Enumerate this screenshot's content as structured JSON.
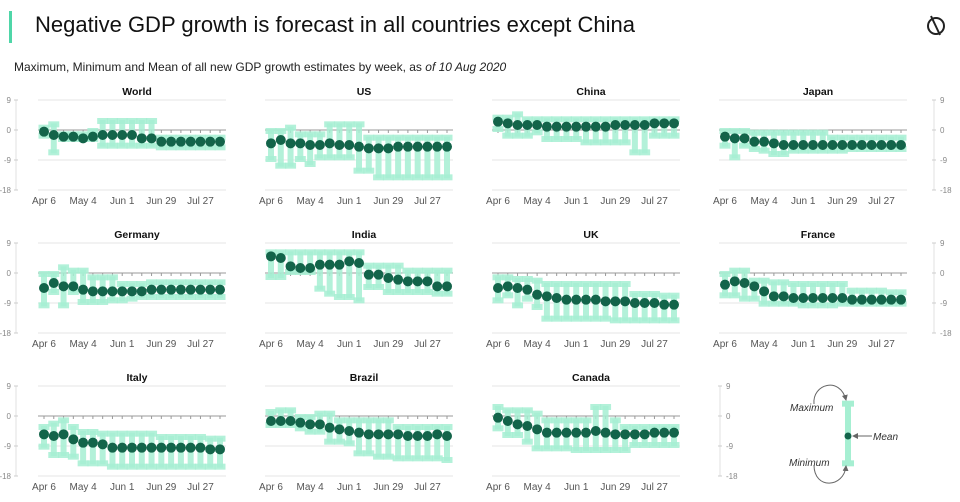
{
  "header": {
    "title": "Negative GDP growth is forecast in all countries except China",
    "subtitle_main": "Maximum, Minimum and Mean of all new GDP growth estimates by week, as ",
    "subtitle_date": "of 10 Aug 2020",
    "logo_icon": "circle-slash-logo-icon"
  },
  "colors": {
    "accent": "#4fd6a8",
    "range": "#a6efd2",
    "mean": "#13644a",
    "zero_line": "#999999",
    "grid": "#e6e6e6"
  },
  "chart_data": {
    "type": "range-dot",
    "weeks": [
      "Apr 6",
      "Apr 13",
      "Apr 20",
      "Apr 27",
      "May 4",
      "May 11",
      "May 18",
      "May 25",
      "Jun 1",
      "Jun 8",
      "Jun 15",
      "Jun 22",
      "Jun 29",
      "Jul 6",
      "Jul 13",
      "Jul 20",
      "Jul 27",
      "Aug 3",
      "Aug 10"
    ],
    "x_tick_labels": [
      "Apr 6",
      "May 4",
      "Jun 1",
      "Jun 29",
      "Jul 27"
    ],
    "y_ticks": [
      "9",
      "0",
      "-9",
      "-18"
    ],
    "ylim": [
      -18,
      9
    ],
    "grid": true,
    "panels": [
      {
        "name": "World",
        "mean": [
          -0.5,
          -1.5,
          -2,
          -2,
          -2.5,
          -2,
          -1.5,
          -1.5,
          -1.5,
          -1.5,
          -2.5,
          -2.5,
          -3.5,
          -3.5,
          -3.5,
          -3.5,
          -3.5,
          -3.5,
          -3.5
        ],
        "max": [
          1,
          2,
          -1,
          -1,
          -1,
          0,
          3,
          3,
          3,
          3,
          3,
          3,
          -2,
          -2,
          -2,
          -2,
          -2,
          -2,
          -2
        ],
        "min": [
          -2,
          -7,
          -3,
          -3,
          -3,
          -3,
          -5,
          -5,
          -5,
          -5,
          -5,
          -5,
          -5.5,
          -5.5,
          -5.5,
          -5.5,
          -5.5,
          -5.5,
          -5.5
        ]
      },
      {
        "name": "US",
        "mean": [
          -4,
          -3,
          -4,
          -4,
          -4.5,
          -4.5,
          -4,
          -4.5,
          -4.5,
          -5,
          -5.5,
          -5.5,
          -5.5,
          -5,
          -5,
          -5,
          -5,
          -5,
          -5
        ],
        "max": [
          0,
          0,
          1,
          -1,
          -1,
          -1,
          2,
          2,
          2,
          2,
          -2,
          -2,
          -2,
          -2,
          -2,
          -2,
          -2,
          -2,
          -2
        ],
        "min": [
          -9,
          -11,
          -11,
          -9,
          -10.5,
          -8.5,
          -8.5,
          -8.5,
          -8.5,
          -12.5,
          -12.5,
          -14.5,
          -14.5,
          -14.5,
          -14.5,
          -14.5,
          -14.5,
          -14.5,
          -14.5
        ]
      },
      {
        "name": "China",
        "mean": [
          2.5,
          2,
          1.5,
          1.5,
          1.5,
          1,
          1,
          1,
          1,
          1,
          1,
          1,
          1.5,
          1.5,
          1.5,
          1.5,
          2,
          2,
          2
        ],
        "max": [
          4,
          4,
          5,
          3.5,
          3.5,
          3.5,
          3.5,
          3.5,
          3.5,
          3.5,
          3.5,
          3.5,
          3.5,
          3.5,
          3.5,
          3.5,
          3.5,
          3.5,
          3.5
        ],
        "min": [
          0,
          -2,
          -2,
          -2,
          -1,
          -3,
          -3,
          -3,
          -3,
          -4,
          -4,
          -4,
          -4,
          -4,
          -7,
          -7,
          -2,
          -2,
          -2
        ]
      },
      {
        "name": "Japan",
        "mean": [
          -2,
          -2.5,
          -2.5,
          -3.5,
          -3.5,
          -4,
          -4.5,
          -4.5,
          -4.5,
          -4.5,
          -4.5,
          -4.5,
          -4.5,
          -4.5,
          -4.5,
          -4.5,
          -4.5,
          -4.5,
          -4.5
        ],
        "max": [
          0,
          0,
          0,
          -0.5,
          -0.5,
          -0.5,
          -0.5,
          -0.5,
          -0.5,
          -0.5,
          -0.5,
          -2,
          -2,
          -2,
          -2,
          -2,
          -2,
          -2,
          -2
        ],
        "min": [
          -5,
          -8.5,
          -5,
          -6,
          -6.5,
          -7.5,
          -7.5,
          -6.5,
          -6.5,
          -6.5,
          -6.5,
          -6.5,
          -6.5,
          -6,
          -6,
          -6,
          -6,
          -6,
          -6
        ]
      },
      {
        "name": "Germany",
        "mean": [
          -4.5,
          -3,
          -4,
          -4,
          -5,
          -5.5,
          -5.5,
          -5.5,
          -5.5,
          -5.5,
          -5.5,
          -5,
          -5,
          -5,
          -5,
          -5,
          -5,
          -5,
          -5
        ],
        "max": [
          0,
          0,
          2,
          1,
          1,
          -1,
          -1,
          -1,
          -3,
          -3,
          -3,
          -2.5,
          -2.5,
          -2.5,
          -2.5,
          -2.5,
          -2.5,
          -2.5,
          -2.5
        ],
        "min": [
          -10,
          -6,
          -10,
          -6,
          -9,
          -9,
          -9,
          -8.5,
          -8.5,
          -8,
          -7.5,
          -7.5,
          -7.5,
          -7.5,
          -7.5,
          -7.5,
          -7.5,
          -7.5,
          -7.5
        ]
      },
      {
        "name": "India",
        "mean": [
          5,
          4.5,
          2,
          1.5,
          1.5,
          2.5,
          2.5,
          2.5,
          3.5,
          3,
          -0.5,
          -0.5,
          -1.5,
          -2,
          -2.5,
          -2.5,
          -2.5,
          -4,
          -4
        ],
        "max": [
          6.5,
          6.5,
          6.5,
          6.5,
          6.5,
          6.5,
          6.5,
          6.5,
          6.5,
          6.5,
          2.5,
          2.5,
          2.5,
          2.5,
          1,
          1,
          1,
          1,
          1
        ],
        "min": [
          -1.5,
          -1.5,
          0,
          0,
          0,
          -5,
          -6.5,
          -7.5,
          -7.5,
          -8.5,
          -4.5,
          -4.5,
          -6,
          -6,
          -6,
          -6,
          -6,
          -6.5,
          -6.5
        ]
      },
      {
        "name": "UK",
        "mean": [
          -4.5,
          -4,
          -4.5,
          -5,
          -6.5,
          -7,
          -7.5,
          -8,
          -8,
          -8,
          -8,
          -8.5,
          -8.5,
          -8.5,
          -9,
          -9,
          -9,
          -9.5,
          -9.5
        ],
        "max": [
          -1,
          -1,
          -1.5,
          -1.5,
          -2,
          -3,
          -3,
          -3,
          -3,
          -3,
          -3,
          -3,
          -3,
          -3,
          -6,
          -6,
          -6,
          -6.5,
          -6.5
        ],
        "min": [
          -8.5,
          -7,
          -10,
          -8,
          -10.5,
          -14,
          -14,
          -14,
          -14,
          -14,
          -14,
          -14,
          -14.5,
          -14.5,
          -14.5,
          -14.5,
          -14.5,
          -14.5,
          -14.5
        ]
      },
      {
        "name": "France",
        "mean": [
          -3.5,
          -2.5,
          -3,
          -4,
          -5.5,
          -7,
          -7,
          -7.5,
          -7.5,
          -7.5,
          -7.5,
          -7.5,
          -7.5,
          -8,
          -8,
          -8,
          -8,
          -8,
          -8
        ],
        "max": [
          0,
          1,
          1,
          -2,
          -2,
          -2.5,
          -2.5,
          -3,
          -3,
          -3,
          -3,
          -3,
          -3,
          -5,
          -5,
          -5,
          -5,
          -5.5,
          -5.5
        ],
        "min": [
          -7,
          -7,
          -8,
          -8,
          -9.5,
          -9.5,
          -9.5,
          -9.5,
          -10,
          -10,
          -10,
          -10,
          -9.5,
          -9.5,
          -9.5,
          -9.5,
          -9.5,
          -9.5,
          -9.5
        ]
      },
      {
        "name": "Italy",
        "mean": [
          -5.5,
          -6,
          -5.5,
          -7,
          -8,
          -8,
          -8.5,
          -9.5,
          -9.5,
          -9.5,
          -9.5,
          -9.5,
          -9.5,
          -9.5,
          -9.5,
          -9.5,
          -9.5,
          -10,
          -10
        ],
        "max": [
          -3,
          -2,
          -1,
          -3,
          -4.5,
          -4.5,
          -5,
          -5,
          -5,
          -5,
          -5,
          -5,
          -6,
          -6,
          -6,
          -6,
          -6,
          -6.5,
          -6.5
        ],
        "min": [
          -9.5,
          -12,
          -12,
          -12.5,
          -14.5,
          -14.5,
          -14.5,
          -15.5,
          -15.5,
          -15.5,
          -15.5,
          -15.5,
          -15.5,
          -15.5,
          -15.5,
          -15.5,
          -15.5,
          -15.5,
          -15.5
        ]
      },
      {
        "name": "Brazil",
        "mean": [
          -1.5,
          -1.5,
          -1.5,
          -2,
          -2.5,
          -2.5,
          -3.5,
          -4,
          -4.5,
          -5,
          -5.5,
          -5.5,
          -5.5,
          -5.5,
          -6,
          -6,
          -6,
          -5.5,
          -6
        ],
        "max": [
          1.5,
          2,
          2,
          0,
          0,
          1,
          1,
          -1,
          -1,
          -1,
          -1,
          -1,
          -1,
          -3,
          -3,
          -3,
          -3,
          -3,
          -3
        ],
        "min": [
          -3,
          -3,
          -3,
          -4,
          -5,
          -5,
          -8,
          -8,
          -8.5,
          -11.5,
          -11.5,
          -12.5,
          -12.5,
          -13,
          -13,
          -13,
          -13,
          -13,
          -13.5
        ]
      },
      {
        "name": "Canada",
        "mean": [
          -0.5,
          -1.5,
          -2.5,
          -3,
          -4,
          -5,
          -5,
          -5,
          -5,
          -5,
          -4.5,
          -5,
          -5.5,
          -5.5,
          -5.5,
          -5.5,
          -5,
          -5,
          -5
        ],
        "max": [
          3,
          2,
          2,
          2,
          1,
          -1,
          -1,
          -1,
          -1,
          -1,
          3,
          3,
          -1,
          -3,
          -3,
          -3,
          -3,
          -3,
          -3
        ],
        "min": [
          -4,
          -6,
          -6,
          -8,
          -10,
          -10,
          -10,
          -10,
          -10.5,
          -10.5,
          -10.5,
          -10.5,
          -10.5,
          -10.5,
          -9,
          -9,
          -9,
          -9,
          -9
        ]
      }
    ],
    "legend": {
      "max_label": "Maximum",
      "mean_label": "Mean",
      "min_label": "Minimum",
      "example": {
        "max": 4,
        "mean": -6,
        "min": -14.5
      }
    }
  }
}
